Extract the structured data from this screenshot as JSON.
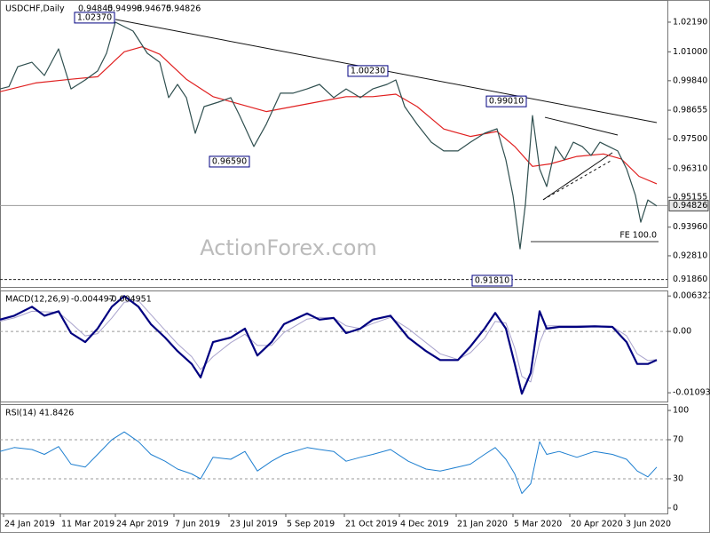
{
  "chart_data": [
    {
      "type": "line",
      "title": "USDCHF,Daily",
      "ohlc": [
        0.94845,
        0.94998,
        0.94675,
        0.94826
      ],
      "watermark": "ActionForex.com",
      "xlim": [
        0,
        376
      ],
      "ylim": [
        0.9156,
        1.0308
      ],
      "grid": false,
      "yticks": [
        {
          "value": 1.0219,
          "label": "1.02190"
        },
        {
          "value": 1.01,
          "label": "1.01000"
        },
        {
          "value": 0.9984,
          "label": "0.99840"
        },
        {
          "value": 0.98655,
          "label": "0.98655"
        },
        {
          "value": 0.975,
          "label": "0.97500"
        },
        {
          "value": 0.9631,
          "label": "0.96310"
        },
        {
          "value": 0.95155,
          "label": "0.95155"
        },
        {
          "value": 0.9396,
          "label": "0.93960"
        },
        {
          "value": 0.9281,
          "label": "0.92810"
        }
      ],
      "series": [
        {
          "name": "USDCHF",
          "color": "#2f4f4f",
          "width": 1.2,
          "x": [
            0,
            5,
            10,
            18,
            25,
            33,
            40,
            48,
            55,
            60,
            65,
            70,
            75,
            83,
            90,
            95,
            100,
            105,
            110,
            115,
            123,
            130,
            135,
            143,
            150,
            158,
            165,
            173,
            180,
            188,
            195,
            203,
            210,
            218,
            223,
            228,
            235,
            243,
            250,
            258,
            265,
            273,
            280,
            285,
            289,
            293,
            296,
            300,
            304,
            308,
            313,
            318,
            323,
            328,
            333,
            338,
            343,
            348,
            353,
            358,
            361,
            365,
            370
          ],
          "values": [
            0.9951,
            0.996,
            1.004,
            1.0058,
            1.0005,
            1.0112,
            0.9951,
            0.9987,
            1.0023,
            1.0094,
            1.0219,
            1.0201,
            1.0183,
            1.0094,
            1.0058,
            0.9916,
            0.9969,
            0.9916,
            0.9773,
            0.988,
            0.9898,
            0.9916,
            0.9844,
            0.972,
            0.9809,
            0.9934,
            0.9934,
            0.9951,
            0.9969,
            0.9916,
            0.9951,
            0.9916,
            0.9951,
            0.9969,
            0.9987,
            0.988,
            0.9809,
            0.9737,
            0.9702,
            0.9702,
            0.9737,
            0.9773,
            0.9791,
            0.9666,
            0.9523,
            0.9309,
            0.9488,
            0.9844,
            0.963,
            0.9559,
            0.972,
            0.9666,
            0.9737,
            0.972,
            0.9684,
            0.9737,
            0.972,
            0.9702,
            0.963,
            0.9523,
            0.9416,
            0.9505,
            0.9481
          ]
        },
        {
          "name": "MA",
          "color": "#e02020",
          "width": 1.2,
          "x": [
            0,
            20,
            40,
            55,
            70,
            80,
            90,
            105,
            120,
            135,
            150,
            165,
            180,
            195,
            210,
            223,
            235,
            250,
            265,
            280,
            290,
            300,
            310,
            325,
            340,
            350,
            360,
            370
          ],
          "values": [
            0.994,
            0.9975,
            0.999,
            1.0,
            1.01,
            1.012,
            1.009,
            0.999,
            0.992,
            0.989,
            0.986,
            0.988,
            0.99,
            0.992,
            0.992,
            0.993,
            0.988,
            0.979,
            0.976,
            0.978,
            0.972,
            0.964,
            0.965,
            0.968,
            0.969,
            0.967,
            0.96,
            0.957
          ]
        }
      ],
      "annotations": [
        {
          "label": "1.02370",
          "value": 1.0237,
          "x": 66
        },
        {
          "label": "1.00230",
          "value": 1.0023,
          "x": 220
        },
        {
          "label": "0.99010",
          "value": 0.9901,
          "x": 298
        },
        {
          "label": "0.96590",
          "value": 0.9659,
          "x": 142
        },
        {
          "label": "0.91810",
          "value": 0.9181,
          "x": 290
        }
      ],
      "levels": [
        {
          "value": 0.94826,
          "label": "0.94826",
          "style": "solid",
          "highlight": true
        },
        {
          "value": 0.9186,
          "label": "0.91860",
          "style": "dashed",
          "highlight": false
        }
      ],
      "trendlines": [
        {
          "x": [
            65,
            370
          ],
          "y": [
            1.023,
            0.9816
          ],
          "style": "solid"
        },
        {
          "x": [
            307,
            348
          ],
          "y": [
            0.9837,
            0.9766
          ],
          "style": "solid"
        },
        {
          "x": [
            306,
            345
          ],
          "y": [
            0.9506,
            0.9695
          ],
          "style": "solid"
        },
        {
          "x": [
            306,
            345
          ],
          "y": [
            0.9506,
            0.9666
          ],
          "style": "dashed"
        }
      ],
      "fe_level": {
        "label": "FE 100.0",
        "value": 0.9338,
        "x": [
          299,
          371
        ]
      }
    },
    {
      "type": "line",
      "title": "MACD(12,26,9)",
      "readout": [
        -0.004497,
        -0.004951
      ],
      "xlim": [
        0,
        376
      ],
      "ylim": [
        -0.0125,
        0.0073
      ],
      "grid": "inner-dashed",
      "yticks": [
        0.006321,
        {
          "value": 0,
          "label": "0.00"
        },
        -0.010939
      ],
      "series": [
        {
          "name": "MACD",
          "color": "#000080",
          "width": 2.2,
          "x": [
            0,
            8,
            18,
            25,
            33,
            40,
            48,
            55,
            63,
            70,
            78,
            85,
            93,
            100,
            108,
            113,
            120,
            130,
            138,
            145,
            153,
            160,
            173,
            180,
            188,
            195,
            203,
            210,
            220,
            230,
            240,
            248,
            258,
            265,
            273,
            279,
            285,
            290,
            294,
            299,
            304,
            308,
            315,
            325,
            335,
            345,
            353,
            359,
            365,
            370
          ],
          "values": [
            0.0021,
            0.0028,
            0.0044,
            0.0028,
            0.0036,
            -0.0003,
            -0.0019,
            0.0005,
            0.0044,
            0.0063,
            0.0044,
            0.0013,
            -0.0011,
            -0.0035,
            -0.0058,
            -0.0082,
            -0.0019,
            -0.0011,
            0.0005,
            -0.0043,
            -0.0019,
            0.0013,
            0.0032,
            0.0021,
            0.0024,
            -0.0003,
            0.0005,
            0.0021,
            0.0028,
            -0.0011,
            -0.0035,
            -0.0051,
            -0.0051,
            -0.0027,
            0.0005,
            0.0033,
            0.0005,
            -0.0058,
            -0.0111,
            -0.0074,
            0.0036,
            0.0005,
            0.0008,
            0.0008,
            0.0009,
            0.0008,
            -0.0019,
            -0.0058,
            -0.0058,
            -0.0051
          ]
        },
        {
          "name": "Signal",
          "color": "#a9a3cc",
          "width": 1,
          "x": [
            0,
            8,
            18,
            25,
            33,
            40,
            48,
            55,
            63,
            70,
            78,
            85,
            93,
            100,
            108,
            113,
            120,
            130,
            138,
            145,
            153,
            160,
            173,
            180,
            188,
            195,
            203,
            210,
            220,
            230,
            240,
            248,
            258,
            265,
            273,
            279,
            285,
            290,
            294,
            299,
            304,
            308,
            315,
            325,
            335,
            345,
            353,
            359,
            365,
            370
          ],
          "values": [
            0.0018,
            0.0024,
            0.0036,
            0.0035,
            0.0034,
            0.0015,
            -0.0008,
            -0.0004,
            0.0024,
            0.0052,
            0.0055,
            0.003,
            0.0002,
            -0.0022,
            -0.0045,
            -0.0068,
            -0.0045,
            -0.002,
            -0.0005,
            -0.0025,
            -0.0025,
            -0.0002,
            0.0022,
            0.0025,
            0.0024,
            0.001,
            0.0005,
            0.0014,
            0.0025,
            0.0005,
            -0.002,
            -0.004,
            -0.005,
            -0.0038,
            -0.0012,
            0.0018,
            0.0015,
            -0.003,
            -0.008,
            -0.009,
            -0.002,
            0.001,
            0.001,
            0.001,
            0.001,
            0.0009,
            -0.0008,
            -0.004,
            -0.0052,
            -0.005
          ]
        }
      ]
    },
    {
      "type": "line",
      "title": "RSI(14)",
      "readout": [
        41.8426
      ],
      "xlim": [
        0,
        376
      ],
      "ylim": [
        -5.5,
        106.4
      ],
      "grid": "inner-dashed",
      "yticks": [
        100,
        70,
        30,
        0
      ],
      "xticks": [
        {
          "value": 2,
          "label": "24 Jan 2019"
        },
        {
          "value": 34,
          "label": "11 Mar 2019"
        },
        {
          "value": 65,
          "label": "24 Apr 2019"
        },
        {
          "value": 98,
          "label": "7 Jun 2019"
        },
        {
          "value": 129,
          "label": "23 Jul 2019"
        },
        {
          "value": 161,
          "label": "5 Sep 2019"
        },
        {
          "value": 194,
          "label": "21 Oct 2019"
        },
        {
          "value": 225,
          "label": "4 Dec 2019"
        },
        {
          "value": 257,
          "label": "21 Jan 2020"
        },
        {
          "value": 289,
          "label": "5 Mar 2020"
        },
        {
          "value": 321,
          "label": "20 Apr 2020"
        },
        {
          "value": 352,
          "label": "3 Jun 2020"
        }
      ],
      "series": [
        {
          "name": "RSI",
          "color": "#1e7fd0",
          "width": 1,
          "x": [
            0,
            8,
            18,
            25,
            33,
            40,
            48,
            55,
            63,
            70,
            78,
            85,
            93,
            100,
            108,
            113,
            120,
            130,
            138,
            145,
            153,
            160,
            173,
            180,
            188,
            195,
            203,
            210,
            220,
            230,
            240,
            248,
            258,
            265,
            273,
            279,
            285,
            290,
            294,
            299,
            304,
            308,
            315,
            325,
            335,
            345,
            353,
            359,
            365,
            370
          ],
          "values": [
            58,
            62,
            60,
            55,
            63,
            45,
            42,
            55,
            70,
            78,
            68,
            55,
            48,
            40,
            35,
            30,
            52,
            50,
            58,
            38,
            48,
            55,
            62,
            60,
            58,
            48,
            52,
            55,
            60,
            48,
            40,
            38,
            42,
            45,
            55,
            62,
            50,
            35,
            15,
            25,
            68,
            55,
            58,
            52,
            58,
            55,
            50,
            38,
            32,
            42
          ]
        }
      ]
    }
  ]
}
